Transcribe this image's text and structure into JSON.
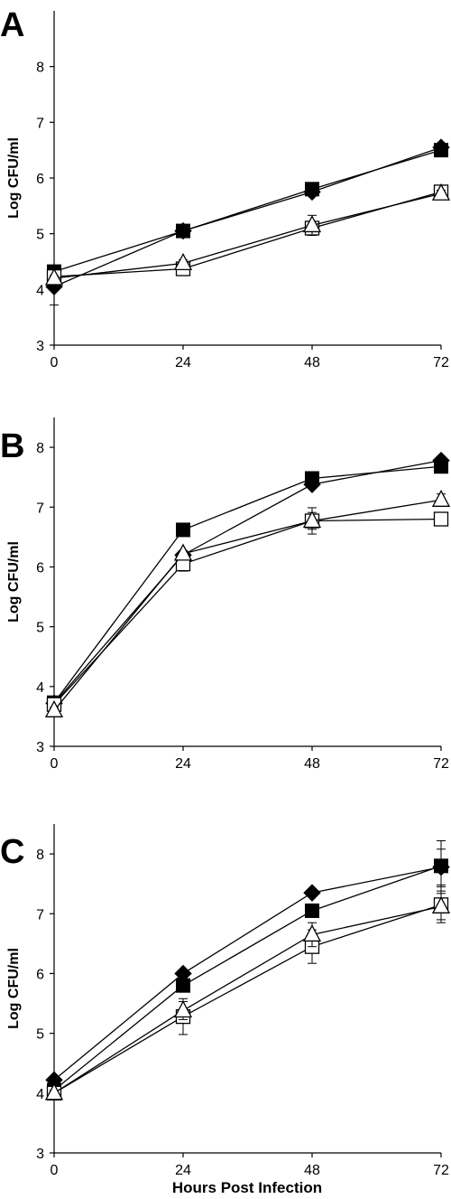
{
  "chart_data": [
    {
      "type": "line",
      "panel_label": "A",
      "title": "",
      "xlabel": "",
      "ylabel": "Log CFU/ml",
      "x": [
        0,
        24,
        48,
        72
      ],
      "xlim": [
        0,
        72
      ],
      "ylim": [
        3,
        9
      ],
      "xticks": [
        "0",
        "24",
        "48",
        "72"
      ],
      "yticks": [
        "3",
        "4",
        "5",
        "6",
        "7",
        "8"
      ],
      "grid": false,
      "legend": "none",
      "series": [
        {
          "marker": "filled-diamond",
          "values": [
            4.05,
            5.05,
            5.75,
            6.55
          ],
          "errors": [
            0.33,
            0.05,
            0.06,
            0.05
          ]
        },
        {
          "marker": "filled-square",
          "values": [
            4.32,
            5.05,
            5.8,
            6.5
          ],
          "errors": [
            0.05,
            0.05,
            0.05,
            0.05
          ]
        },
        {
          "marker": "open-square",
          "values": [
            4.23,
            4.37,
            5.1,
            5.75
          ],
          "errors": [
            0.06,
            0.12,
            0.08,
            0.1
          ]
        },
        {
          "marker": "open-triangle",
          "values": [
            4.2,
            4.47,
            5.15,
            5.72
          ],
          "errors": [
            0.05,
            0.06,
            0.18,
            0.06
          ]
        }
      ]
    },
    {
      "type": "line",
      "panel_label": "B",
      "title": "",
      "xlabel": "",
      "ylabel": "Log CFU/ml",
      "x": [
        0,
        24,
        48,
        72
      ],
      "xlim": [
        0,
        72
      ],
      "ylim": [
        3,
        8.5
      ],
      "xticks": [
        "0",
        "24",
        "48",
        "72"
      ],
      "yticks": [
        "3",
        "4",
        "5",
        "6",
        "7",
        "8"
      ],
      "grid": false,
      "legend": "none",
      "series": [
        {
          "marker": "filled-diamond",
          "values": [
            3.72,
            6.2,
            7.38,
            7.78
          ],
          "errors": [
            0.05,
            0.05,
            0.05,
            0.05
          ]
        },
        {
          "marker": "filled-square",
          "values": [
            3.73,
            6.62,
            7.48,
            7.68
          ],
          "errors": [
            0.05,
            0.05,
            0.05,
            0.05
          ]
        },
        {
          "marker": "open-square",
          "values": [
            3.7,
            6.05,
            6.77,
            6.8
          ],
          "errors": [
            0.05,
            0.12,
            0.14,
            0.1
          ]
        },
        {
          "marker": "open-triangle",
          "values": [
            3.6,
            6.22,
            6.77,
            7.12
          ],
          "errors": [
            0.05,
            0.05,
            0.22,
            0.1
          ]
        }
      ]
    },
    {
      "type": "line",
      "panel_label": "C",
      "title": "",
      "xlabel": "Hours Post Infection",
      "ylabel": "Log CFU/ml",
      "x": [
        0,
        24,
        48,
        72
      ],
      "xlim": [
        0,
        72
      ],
      "ylim": [
        3,
        8.5
      ],
      "xticks": [
        "0",
        "24",
        "48",
        "72"
      ],
      "yticks": [
        "3",
        "4",
        "5",
        "6",
        "7",
        "8"
      ],
      "grid": false,
      "legend": "none",
      "series": [
        {
          "marker": "filled-diamond",
          "values": [
            4.22,
            6.0,
            7.35,
            7.78
          ],
          "errors": [
            0.05,
            0.05,
            0.05,
            0.3
          ]
        },
        {
          "marker": "filled-square",
          "values": [
            4.05,
            5.8,
            7.05,
            7.8
          ],
          "errors": [
            0.05,
            0.05,
            0.05,
            0.42
          ]
        },
        {
          "marker": "open-square",
          "values": [
            4.0,
            5.28,
            6.45,
            7.15
          ],
          "errors": [
            0.05,
            0.3,
            0.28,
            0.3
          ]
        },
        {
          "marker": "open-triangle",
          "values": [
            4.0,
            5.38,
            6.65,
            7.12
          ],
          "errors": [
            0.05,
            0.15,
            0.2,
            0.22
          ]
        }
      ]
    }
  ]
}
